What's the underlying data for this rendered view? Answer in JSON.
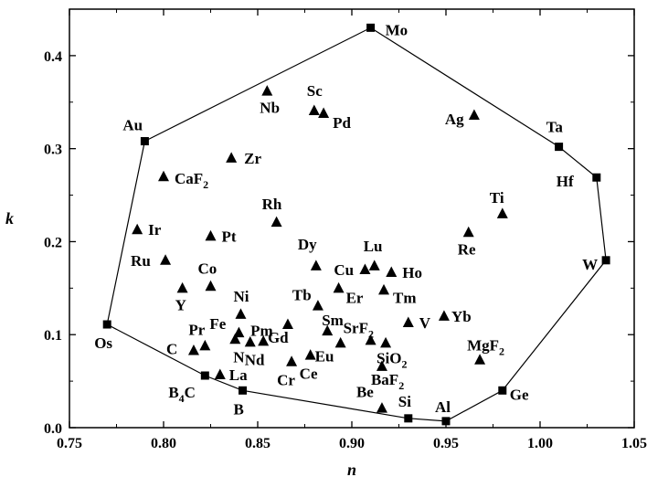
{
  "chart_data": {
    "type": "scatter",
    "xlabel": "n",
    "ylabel": "k",
    "xlim": [
      0.75,
      1.05
    ],
    "ylim": [
      0.0,
      0.45
    ],
    "x_ticks": [
      "0.75",
      "0.80",
      "0.85",
      "0.90",
      "0.95",
      "1.00",
      "1.05"
    ],
    "y_ticks": [
      "0.0",
      "0.1",
      "0.2",
      "0.3",
      "0.4"
    ],
    "grid": false,
    "boundary": {
      "marker": "square",
      "points": [
        {
          "label": "Mo",
          "x": 0.91,
          "y": 0.43
        },
        {
          "label": "Ta",
          "x": 1.01,
          "y": 0.302
        },
        {
          "label": "Hf",
          "x": 1.03,
          "y": 0.269
        },
        {
          "label": "W",
          "x": 1.035,
          "y": 0.18
        },
        {
          "label": "Ge",
          "x": 0.98,
          "y": 0.04
        },
        {
          "label": "Al",
          "x": 0.95,
          "y": 0.007
        },
        {
          "label": "Si",
          "x": 0.93,
          "y": 0.01
        },
        {
          "label": "B",
          "x": 0.842,
          "y": 0.04
        },
        {
          "label": "B4C",
          "x": 0.822,
          "y": 0.056
        },
        {
          "label": "Os",
          "x": 0.77,
          "y": 0.111
        },
        {
          "label": "Au",
          "x": 0.79,
          "y": 0.308
        }
      ]
    },
    "materials": {
      "marker": "triangle",
      "points": [
        {
          "label": "Nb",
          "x": 0.855,
          "y": 0.362
        },
        {
          "label": "Sc",
          "x": 0.88,
          "y": 0.341
        },
        {
          "label": "Pd",
          "x": 0.885,
          "y": 0.338
        },
        {
          "label": "Ag",
          "x": 0.965,
          "y": 0.336
        },
        {
          "label": "Zr",
          "x": 0.836,
          "y": 0.29
        },
        {
          "label": "CaF2",
          "x": 0.8,
          "y": 0.27
        },
        {
          "label": "Ti",
          "x": 0.98,
          "y": 0.23
        },
        {
          "label": "Rh",
          "x": 0.86,
          "y": 0.221
        },
        {
          "label": "Ir",
          "x": 0.786,
          "y": 0.213
        },
        {
          "label": "Pt",
          "x": 0.825,
          "y": 0.206
        },
        {
          "label": "Re",
          "x": 0.962,
          "y": 0.21
        },
        {
          "label": "Ru",
          "x": 0.801,
          "y": 0.18
        },
        {
          "label": "Dy",
          "x": 0.881,
          "y": 0.174
        },
        {
          "label": "Lu",
          "x": 0.912,
          "y": 0.174
        },
        {
          "label": "Cu",
          "x": 0.907,
          "y": 0.17
        },
        {
          "label": "Ho",
          "x": 0.921,
          "y": 0.167
        },
        {
          "label": "Co",
          "x": 0.825,
          "y": 0.152
        },
        {
          "label": "Y",
          "x": 0.81,
          "y": 0.15
        },
        {
          "label": "Er",
          "x": 0.893,
          "y": 0.15
        },
        {
          "label": "Tm",
          "x": 0.917,
          "y": 0.148
        },
        {
          "label": "Tb",
          "x": 0.882,
          "y": 0.131
        },
        {
          "label": "Ni",
          "x": 0.841,
          "y": 0.122
        },
        {
          "label": "Yb",
          "x": 0.949,
          "y": 0.12
        },
        {
          "label": "Gd",
          "x": 0.866,
          "y": 0.111
        },
        {
          "label": "Sm",
          "x": 0.887,
          "y": 0.104
        },
        {
          "label": "V",
          "x": 0.93,
          "y": 0.113
        },
        {
          "label": "Fe",
          "x": 0.84,
          "y": 0.102
        },
        {
          "label": "SrF2",
          "x": 0.91,
          "y": 0.094
        },
        {
          "label": "Pm",
          "x": 0.853,
          "y": 0.093
        },
        {
          "label": "N",
          "x": 0.838,
          "y": 0.095
        },
        {
          "label": "Nd",
          "x": 0.846,
          "y": 0.092
        },
        {
          "label": "Eu",
          "x": 0.894,
          "y": 0.091
        },
        {
          "label": "SiO2",
          "x": 0.918,
          "y": 0.091
        },
        {
          "label": "Pr",
          "x": 0.822,
          "y": 0.088
        },
        {
          "label": "C",
          "x": 0.816,
          "y": 0.083
        },
        {
          "label": "Ce",
          "x": 0.878,
          "y": 0.078
        },
        {
          "label": "Cr",
          "x": 0.868,
          "y": 0.071
        },
        {
          "label": "MgF2",
          "x": 0.968,
          "y": 0.073
        },
        {
          "label": "BaF2",
          "x": 0.916,
          "y": 0.066
        },
        {
          "label": "La",
          "x": 0.83,
          "y": 0.057
        },
        {
          "label": "Be",
          "x": 0.916,
          "y": 0.021
        }
      ]
    }
  }
}
